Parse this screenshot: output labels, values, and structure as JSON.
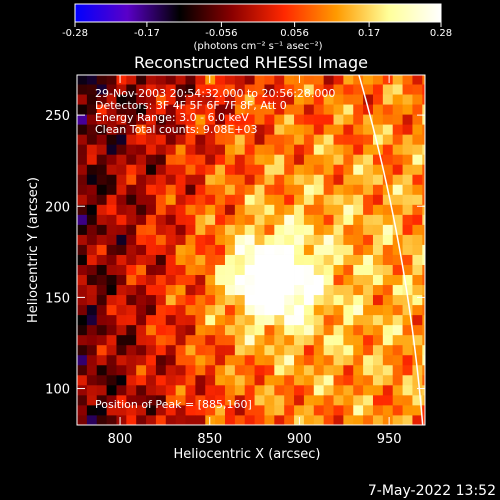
{
  "chart_data": {
    "type": "heatmap",
    "title": "Reconstructed RHESSI Image",
    "xlabel": "Heliocentric X (arcsec)",
    "ylabel": "Heliocentric Y (arcsec)",
    "xlim": [
      776,
      970
    ],
    "ylim": [
      80,
      272
    ],
    "x_ticks": [
      800,
      850,
      900,
      950
    ],
    "y_ticks": [
      100,
      150,
      200,
      250
    ],
    "x_tick_labels": [
      "800",
      "850",
      "900",
      "950"
    ],
    "y_tick_labels": [
      "100",
      "150",
      "200",
      "250"
    ],
    "peak": [
      885,
      160
    ],
    "colorbar": {
      "range": [
        -0.28,
        0.28
      ],
      "ticks": [
        -0.28,
        -0.17,
        -0.056,
        0.056,
        0.17,
        0.28
      ],
      "tick_labels": [
        "-0.28",
        "-0.17",
        "-0.056",
        "0.056",
        "0.17",
        "0.28"
      ],
      "unit_label": "(photons cm⁻² s⁻¹ asec⁻²)",
      "colormap": [
        "#0000ff",
        "#5a00c8",
        "#000000",
        "#8a0000",
        "#ff2800",
        "#ff9a00",
        "#ffff9a",
        "#ffffff"
      ]
    },
    "annotations": [
      "29-Nov-2003 20:54:32.000 to 20:56:28.000",
      "Detectors: 3F 4F 5F 6F 7F 8F, Att 0",
      "Energy Range: 3.0 - 6.0 keV",
      "Clean    Total counts: 9.08E+03"
    ],
    "peak_label": "Position of Peak = [885,160]",
    "limb_color": "#ffffff",
    "grid": false
  },
  "footer": {
    "datetime": "7-May-2022 13:52"
  }
}
